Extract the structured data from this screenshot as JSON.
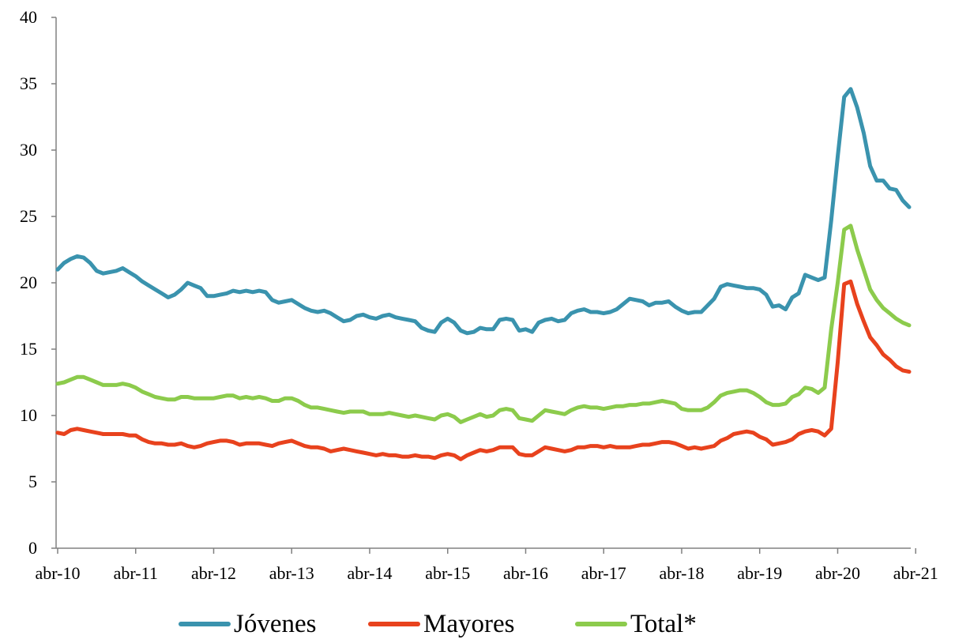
{
  "chart_data": {
    "type": "line",
    "title": "",
    "xlabel": "",
    "ylabel": "",
    "ylim": [
      0,
      40
    ],
    "yticks": [
      0,
      5,
      10,
      15,
      20,
      25,
      30,
      35,
      40
    ],
    "x_tick_labels": [
      "abr-10",
      "abr-11",
      "abr-12",
      "abr-13",
      "abr-14",
      "abr-15",
      "abr-16",
      "abr-17",
      "abr-18",
      "abr-19",
      "abr-20",
      "abr-21"
    ],
    "x_start": "abr-10",
    "x_end": "may-21",
    "grid": false,
    "legend_position": "bottom",
    "series": [
      {
        "name": "Jóvenes",
        "color": "#3A93AE",
        "values": [
          21.0,
          21.5,
          21.8,
          22.0,
          21.9,
          21.5,
          20.9,
          20.7,
          20.8,
          20.9,
          21.1,
          20.8,
          20.5,
          20.1,
          19.8,
          19.5,
          19.2,
          18.9,
          19.1,
          19.5,
          20.0,
          19.8,
          19.6,
          19.0,
          19.0,
          19.1,
          19.2,
          19.4,
          19.3,
          19.4,
          19.3,
          19.4,
          19.3,
          18.7,
          18.5,
          18.6,
          18.7,
          18.4,
          18.1,
          17.9,
          17.8,
          17.9,
          17.7,
          17.4,
          17.1,
          17.2,
          17.5,
          17.6,
          17.4,
          17.3,
          17.5,
          17.6,
          17.4,
          17.3,
          17.2,
          17.1,
          16.6,
          16.4,
          16.3,
          17.0,
          17.3,
          17.0,
          16.4,
          16.2,
          16.3,
          16.6,
          16.5,
          16.5,
          17.2,
          17.3,
          17.2,
          16.4,
          16.5,
          16.3,
          17.0,
          17.2,
          17.3,
          17.1,
          17.2,
          17.7,
          17.9,
          18.0,
          17.8,
          17.8,
          17.7,
          17.8,
          18.0,
          18.4,
          18.8,
          18.7,
          18.6,
          18.3,
          18.5,
          18.5,
          18.6,
          18.2,
          17.9,
          17.7,
          17.8,
          17.8,
          18.3,
          18.8,
          19.7,
          19.9,
          19.8,
          19.7,
          19.6,
          19.6,
          19.5,
          19.1,
          18.2,
          18.3,
          18.0,
          18.9,
          19.2,
          20.6,
          20.4,
          20.2,
          20.4,
          24.7,
          29.5,
          34.0,
          34.6,
          33.2,
          31.3,
          28.8,
          27.7,
          27.7,
          27.1,
          27.0,
          26.2,
          25.7
        ]
      },
      {
        "name": "Mayores",
        "color": "#E8421D",
        "values": [
          8.7,
          8.6,
          8.9,
          9.0,
          8.9,
          8.8,
          8.7,
          8.6,
          8.6,
          8.6,
          8.6,
          8.5,
          8.5,
          8.2,
          8.0,
          7.9,
          7.9,
          7.8,
          7.8,
          7.9,
          7.7,
          7.6,
          7.7,
          7.9,
          8.0,
          8.1,
          8.1,
          8.0,
          7.8,
          7.9,
          7.9,
          7.9,
          7.8,
          7.7,
          7.9,
          8.0,
          8.1,
          7.9,
          7.7,
          7.6,
          7.6,
          7.5,
          7.3,
          7.4,
          7.5,
          7.4,
          7.3,
          7.2,
          7.1,
          7.0,
          7.1,
          7.0,
          7.0,
          6.9,
          6.9,
          7.0,
          6.9,
          6.9,
          6.8,
          7.0,
          7.1,
          7.0,
          6.7,
          7.0,
          7.2,
          7.4,
          7.3,
          7.4,
          7.6,
          7.6,
          7.6,
          7.1,
          7.0,
          7.0,
          7.3,
          7.6,
          7.5,
          7.4,
          7.3,
          7.4,
          7.6,
          7.6,
          7.7,
          7.7,
          7.6,
          7.7,
          7.6,
          7.6,
          7.6,
          7.7,
          7.8,
          7.8,
          7.9,
          8.0,
          8.0,
          7.9,
          7.7,
          7.5,
          7.6,
          7.5,
          7.6,
          7.7,
          8.1,
          8.3,
          8.6,
          8.7,
          8.8,
          8.7,
          8.4,
          8.2,
          7.8,
          7.9,
          8.0,
          8.2,
          8.6,
          8.8,
          8.9,
          8.8,
          8.5,
          9.0,
          14.0,
          19.9,
          20.1,
          18.4,
          17.1,
          15.9,
          15.3,
          14.6,
          14.2,
          13.7,
          13.4,
          13.3
        ]
      },
      {
        "name": "Total*",
        "color": "#8CCB4C",
        "values": [
          12.4,
          12.5,
          12.7,
          12.9,
          12.9,
          12.7,
          12.5,
          12.3,
          12.3,
          12.3,
          12.4,
          12.3,
          12.1,
          11.8,
          11.6,
          11.4,
          11.3,
          11.2,
          11.2,
          11.4,
          11.4,
          11.3,
          11.3,
          11.3,
          11.3,
          11.4,
          11.5,
          11.5,
          11.3,
          11.4,
          11.3,
          11.4,
          11.3,
          11.1,
          11.1,
          11.3,
          11.3,
          11.1,
          10.8,
          10.6,
          10.6,
          10.5,
          10.4,
          10.3,
          10.2,
          10.3,
          10.3,
          10.3,
          10.1,
          10.1,
          10.1,
          10.2,
          10.1,
          10.0,
          9.9,
          10.0,
          9.9,
          9.8,
          9.7,
          10.0,
          10.1,
          9.9,
          9.5,
          9.7,
          9.9,
          10.1,
          9.9,
          10.0,
          10.4,
          10.5,
          10.4,
          9.8,
          9.7,
          9.6,
          10.0,
          10.4,
          10.3,
          10.2,
          10.1,
          10.4,
          10.6,
          10.7,
          10.6,
          10.6,
          10.5,
          10.6,
          10.7,
          10.7,
          10.8,
          10.8,
          10.9,
          10.9,
          11.0,
          11.1,
          11.0,
          10.9,
          10.5,
          10.4,
          10.4,
          10.4,
          10.6,
          11.0,
          11.5,
          11.7,
          11.8,
          11.9,
          11.9,
          11.7,
          11.4,
          11.0,
          10.8,
          10.8,
          10.9,
          11.4,
          11.6,
          12.1,
          12.0,
          11.7,
          12.1,
          16.5,
          20.0,
          24.0,
          24.3,
          22.5,
          21.0,
          19.5,
          18.7,
          18.1,
          17.7,
          17.3,
          17.0,
          16.8
        ]
      }
    ]
  }
}
